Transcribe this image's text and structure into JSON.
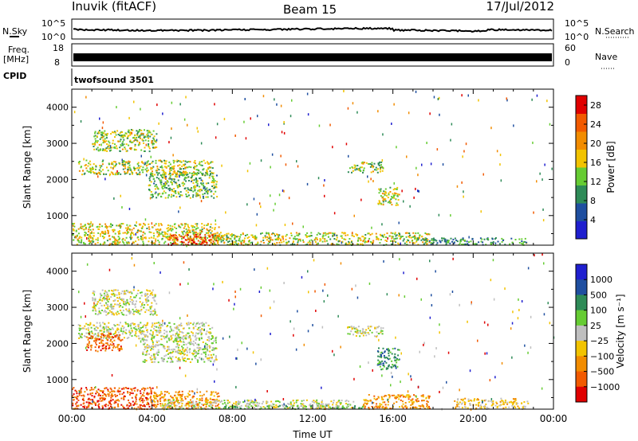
{
  "header": {
    "station": "Inuvik (fitACF)",
    "beam": "Beam 15",
    "date": "17/Jul/2012"
  },
  "strips": {
    "nsky": {
      "label": "N.Sky",
      "ticks": [
        "10^5",
        "10^0"
      ]
    },
    "nsearch": {
      "label": "N.Search",
      "ticks": [
        "10^5",
        "10^0"
      ]
    },
    "freq": {
      "label_top": "Freq.",
      "label_bottom": "[MHz]",
      "ticks": [
        "18",
        "8"
      ]
    },
    "nave": {
      "label": "Nave",
      "ticks": [
        "60",
        "0"
      ]
    },
    "cpid": {
      "label": "CPID",
      "value": "twofsound 3501"
    }
  },
  "chart_data": [
    {
      "type": "heatmap",
      "name": "Power",
      "ylabel": "Slant Range [km]",
      "ylim": [
        180,
        4500
      ],
      "yticks": [
        "1000",
        "2000",
        "3000",
        "4000"
      ],
      "yticks_values": [
        1000,
        2000,
        3000,
        4000
      ],
      "colorbar_label": "Power [dB]",
      "colorbar_ticks": [
        "4",
        "8",
        "12",
        "16",
        "20",
        "24",
        "28"
      ],
      "colorbar_values": [
        4,
        8,
        12,
        16,
        20,
        24,
        28
      ],
      "colorbar_range": [
        0,
        30
      ],
      "colors": [
        "#1f1fcf",
        "#1f4fa0",
        "#2e8b57",
        "#66cc33",
        "#f2c300",
        "#f28c00",
        "#f25a00",
        "#e00000"
      ],
      "regions": [
        {
          "t0": 0.0,
          "t1": 7.3,
          "r0": 200,
          "r1": 800,
          "level": 0.55
        },
        {
          "t0": 4.8,
          "t1": 7.3,
          "r0": 200,
          "r1": 500,
          "level": 0.92
        },
        {
          "t0": 0.3,
          "t1": 7.0,
          "r0": 2150,
          "r1": 2550,
          "level": 0.5
        },
        {
          "t0": 1.0,
          "t1": 4.2,
          "r0": 2800,
          "r1": 3400,
          "level": 0.45
        },
        {
          "t0": 3.8,
          "t1": 7.2,
          "r0": 1500,
          "r1": 2200,
          "level": 0.4
        },
        {
          "t0": 7.0,
          "t1": 17.8,
          "r0": 200,
          "r1": 550,
          "level": 0.5
        },
        {
          "t0": 13.7,
          "t1": 15.5,
          "r0": 2200,
          "r1": 2500,
          "level": 0.45
        },
        {
          "t0": 15.2,
          "t1": 16.3,
          "r0": 1300,
          "r1": 1800,
          "level": 0.5
        },
        {
          "t0": 17.5,
          "t1": 22.7,
          "r0": 200,
          "r1": 400,
          "level": 0.3
        }
      ]
    },
    {
      "type": "heatmap",
      "name": "Velocity",
      "ylabel": "Slant Range [km]",
      "xlabel": "Time UT",
      "xticks": [
        "00:00",
        "04:00",
        "08:00",
        "12:00",
        "16:00",
        "20:00",
        "00:00"
      ],
      "xticks_values": [
        0,
        4,
        8,
        12,
        16,
        20,
        24
      ],
      "xlim": [
        0,
        24
      ],
      "ylim": [
        180,
        4500
      ],
      "yticks": [
        "1000",
        "2000",
        "3000",
        "4000"
      ],
      "yticks_values": [
        1000,
        2000,
        3000,
        4000
      ],
      "colorbar_label": "Velocity [m s⁻¹]",
      "colorbar_ticks": [
        "1000",
        "500",
        "100",
        "25",
        "−25",
        "−100",
        "−500",
        "−1000"
      ],
      "colors": [
        "#1f1fcf",
        "#1f4fa0",
        "#2e8b57",
        "#66cc33",
        "#bfbfbf",
        "#f2c300",
        "#f28c00",
        "#f25a00",
        "#e00000"
      ],
      "regions": [
        {
          "t0": 0.0,
          "t1": 4.0,
          "r0": 200,
          "r1": 800,
          "cls": 7
        },
        {
          "t0": 4.0,
          "t1": 7.3,
          "r0": 200,
          "r1": 700,
          "cls": 6
        },
        {
          "t0": 0.3,
          "t1": 7.0,
          "r0": 2150,
          "r1": 2600,
          "cls": 4
        },
        {
          "t0": 1.0,
          "t1": 4.2,
          "r0": 2800,
          "r1": 3500,
          "cls": 4
        },
        {
          "t0": 0.7,
          "t1": 2.5,
          "r0": 1800,
          "r1": 2300,
          "cls": 7
        },
        {
          "t0": 3.5,
          "t1": 7.2,
          "r0": 1500,
          "r1": 2200,
          "cls": 4
        },
        {
          "t0": 4.5,
          "t1": 14.0,
          "r0": 200,
          "r1": 450,
          "cls": 4
        },
        {
          "t0": 7.5,
          "t1": 14.5,
          "r0": 200,
          "r1": 300,
          "cls": 3
        },
        {
          "t0": 14.5,
          "t1": 17.8,
          "r0": 200,
          "r1": 600,
          "cls": 6
        },
        {
          "t0": 15.2,
          "t1": 16.3,
          "r0": 1300,
          "r1": 1900,
          "cls": 2
        },
        {
          "t0": 13.7,
          "t1": 15.5,
          "r0": 2200,
          "r1": 2500,
          "cls": 4
        },
        {
          "t0": 19.0,
          "t1": 22.7,
          "r0": 200,
          "r1": 500,
          "cls": 5
        }
      ]
    }
  ]
}
